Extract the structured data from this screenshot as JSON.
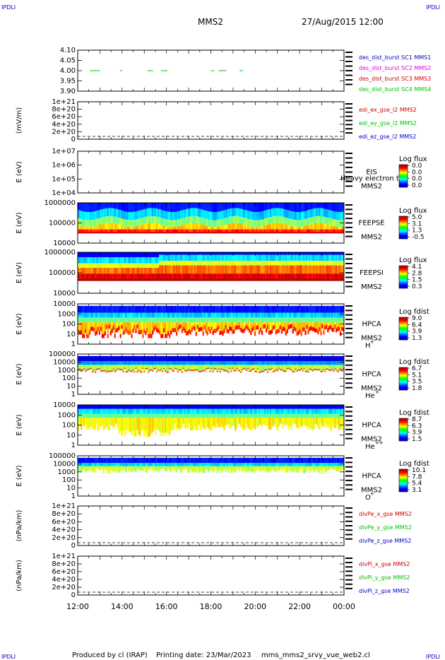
{
  "corner_label": "IPDLI",
  "header": {
    "spacecraft": "MMS2",
    "datetime": "27/Aug/2015 12:00"
  },
  "footer": {
    "produced_by": "Produced by cl (IRAP)",
    "printing": "Printing date: 23/Mar/2023",
    "file": "mms_mms2_srvy_vue_web2.cl"
  },
  "colors": {
    "mms1": "#0000c8",
    "mms2": "#e000e0",
    "mms3": "#d00000",
    "mms4": "#00c000",
    "red": "#d00000",
    "green": "#00c000",
    "blue": "#0000c8"
  },
  "chart_data": [
    {
      "type": "line",
      "id": "burst",
      "ylabel": "",
      "ylim": [
        3.9,
        4.1
      ],
      "y_ticks": [
        "4.10",
        "4.05",
        "4.00",
        "3.95",
        "3.90"
      ],
      "series": [
        {
          "name": "des_dist_burst SC1 MMS1"
        },
        {
          "name": "des_dist_burst SC2 MMS2"
        },
        {
          "name": "des_dist_burst SC3 MMS3"
        },
        {
          "name": "des_dist_burst SC4 MMS4",
          "segments": [
            [
              12.55,
              13.0
            ],
            [
              13.9,
              14.0
            ],
            [
              15.15,
              15.4
            ],
            [
              15.75,
              16.05
            ],
            [
              18.0,
              18.15
            ],
            [
              18.35,
              18.7
            ],
            [
              19.3,
              19.45
            ],
            [
              23.95,
              24.0
            ]
          ],
          "y": 4.0
        }
      ]
    },
    {
      "type": "line",
      "id": "efield",
      "ylabel": "(mV/m)",
      "y_ticks": [
        "1e+21",
        "8e+20",
        "6e+20",
        "4e+20",
        "2e+20",
        "0"
      ],
      "series": [
        {
          "name": "edi_ex_gse_l2 MMS2"
        },
        {
          "name": "edi_ey_gse_l2 MMS2"
        },
        {
          "name": "edi_ez_gse_l2 MMS2"
        }
      ]
    },
    {
      "type": "heatmap",
      "id": "eis",
      "ylabel": "E (eV)",
      "y_ticks": [
        "1e+07",
        "1e+06",
        "1e+05",
        "1e+04"
      ],
      "instrument": "EIS",
      "instrument_sub": "MMS2",
      "overlay": "Heavy electron to",
      "colorbar": {
        "title": "Log flux",
        "ticks": [
          "0.0",
          "0.0",
          "0.0",
          "0.0"
        ]
      }
    },
    {
      "type": "heatmap",
      "id": "feepse",
      "ylabel": "E (eV)",
      "y_ticks": [
        "1000000",
        "100000",
        "10000"
      ],
      "instrument": "FEEPSE",
      "instrument_sub": "MMS2",
      "colorbar": {
        "title": "Log flux",
        "ticks": [
          "5.0",
          "3.1",
          "1.3",
          "-0.5"
        ]
      }
    },
    {
      "type": "heatmap",
      "id": "feepsi",
      "ylabel": "E (eV)",
      "y_ticks": [
        "1000000",
        "100000",
        "10000"
      ],
      "instrument": "FEEPSI",
      "instrument_sub": "MMS2",
      "colorbar": {
        "title": "Log flux",
        "ticks": [
          "4.1",
          "2.8",
          "1.5",
          "0.3"
        ]
      }
    },
    {
      "type": "heatmap",
      "id": "hpca_h",
      "ylabel": "E (eV)",
      "y_ticks": [
        "10000",
        "1000",
        "100",
        "10",
        "1"
      ],
      "instrument": "HPCA",
      "instrument_sub": "MMS2",
      "species": "H",
      "charge": "+",
      "colorbar": {
        "title": "Log fdist",
        "ticks": [
          "9.0",
          "6.4",
          "3.9",
          "1.3"
        ]
      }
    },
    {
      "type": "heatmap",
      "id": "hpca_he1",
      "ylabel": "E (eV)",
      "y_ticks": [
        "100000",
        "10000",
        "1000",
        "100",
        "10",
        "1"
      ],
      "instrument": "HPCA",
      "instrument_sub": "MMS2",
      "species": "He",
      "charge": "+",
      "colorbar": {
        "title": "Log fdist",
        "ticks": [
          "6.7",
          "5.1",
          "3.5",
          "1.8"
        ]
      }
    },
    {
      "type": "heatmap",
      "id": "hpca_he2",
      "ylabel": "E (eV)",
      "y_ticks": [
        "10000",
        "1000",
        "100",
        "10",
        "1"
      ],
      "instrument": "HPCA",
      "instrument_sub": "MMS2",
      "species": "He",
      "charge": "++",
      "colorbar": {
        "title": "Log fdist",
        "ticks": [
          "8.7",
          "6.3",
          "3.9",
          "1.5"
        ]
      }
    },
    {
      "type": "heatmap",
      "id": "hpca_o",
      "ylabel": "E (eV)",
      "y_ticks": [
        "100000",
        "10000",
        "1000",
        "100",
        "10",
        "1"
      ],
      "instrument": "HPCA",
      "instrument_sub": "MMS2",
      "species": "O",
      "charge": "+",
      "colorbar": {
        "title": "Log fdist",
        "ticks": [
          "10.1",
          "7.8",
          "5.4",
          "3.1"
        ]
      }
    },
    {
      "type": "line",
      "id": "divpe",
      "ylabel": "(nPa/km)",
      "y_ticks": [
        "1e+21",
        "8e+20",
        "6e+20",
        "4e+20",
        "2e+20",
        "0"
      ],
      "series": [
        {
          "name": "divPe_x_gse MMS2"
        },
        {
          "name": "divPe_y_gse MMS2"
        },
        {
          "name": "divPe_z_gse MMS2"
        }
      ]
    },
    {
      "type": "line",
      "id": "divpi",
      "ylabel": "(nPa/km)",
      "y_ticks": [
        "1e+21",
        "8e+20",
        "6e+20",
        "4e+20",
        "2e+20",
        "0"
      ],
      "series": [
        {
          "name": "divPi_x_gse MMS2"
        },
        {
          "name": "divPi_y_gse MMS2"
        },
        {
          "name": "divPi_z_gse MMS2"
        }
      ]
    }
  ],
  "x_axis": {
    "ticks": [
      "12:00",
      "14:00",
      "16:00",
      "18:00",
      "20:00",
      "22:00",
      "00:00"
    ],
    "range_hours": [
      12,
      24
    ]
  }
}
